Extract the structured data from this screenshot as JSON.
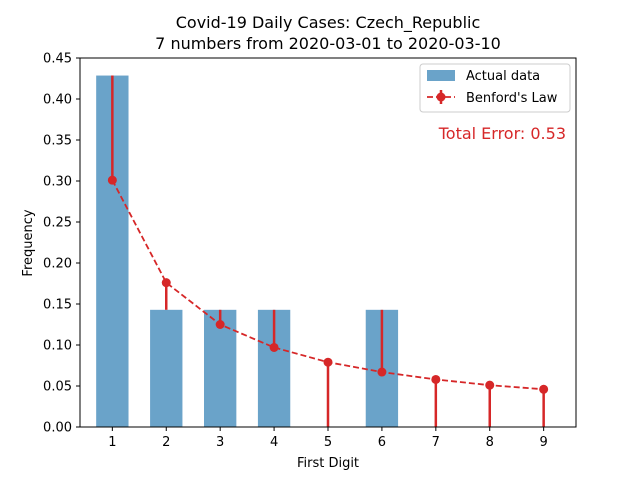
{
  "chart_data": {
    "type": "bar",
    "title_line1": "Covid-19 Daily Cases: Czech_Republic",
    "title_line2": "7 numbers from 2020-03-01 to 2020-03-10",
    "xlabel": "First Digit",
    "ylabel": "Frequency",
    "ylim": [
      0,
      0.45
    ],
    "yticks": [
      0.0,
      0.05,
      0.1,
      0.15,
      0.2,
      0.25,
      0.3,
      0.35,
      0.4,
      0.45
    ],
    "ytick_labels": [
      "0.00",
      "0.05",
      "0.10",
      "0.15",
      "0.20",
      "0.25",
      "0.30",
      "0.35",
      "0.40",
      "0.45"
    ],
    "categories": [
      "1",
      "2",
      "3",
      "4",
      "5",
      "6",
      "7",
      "8",
      "9"
    ],
    "series": [
      {
        "name": "Actual data",
        "kind": "bar",
        "color": "#6aa3c9",
        "values": [
          0.4286,
          0.1429,
          0.1429,
          0.1429,
          0.0,
          0.1429,
          0.0,
          0.0,
          0.0
        ]
      },
      {
        "name": "Benford's Law",
        "kind": "line-errorbar",
        "color": "#d62728",
        "values": [
          0.301,
          0.176,
          0.125,
          0.097,
          0.079,
          0.067,
          0.058,
          0.051,
          0.046
        ]
      }
    ],
    "legend_position": "top-right",
    "annotation": "Total Error: 0.53",
    "annotation_color": "#d62728",
    "grid": false
  }
}
